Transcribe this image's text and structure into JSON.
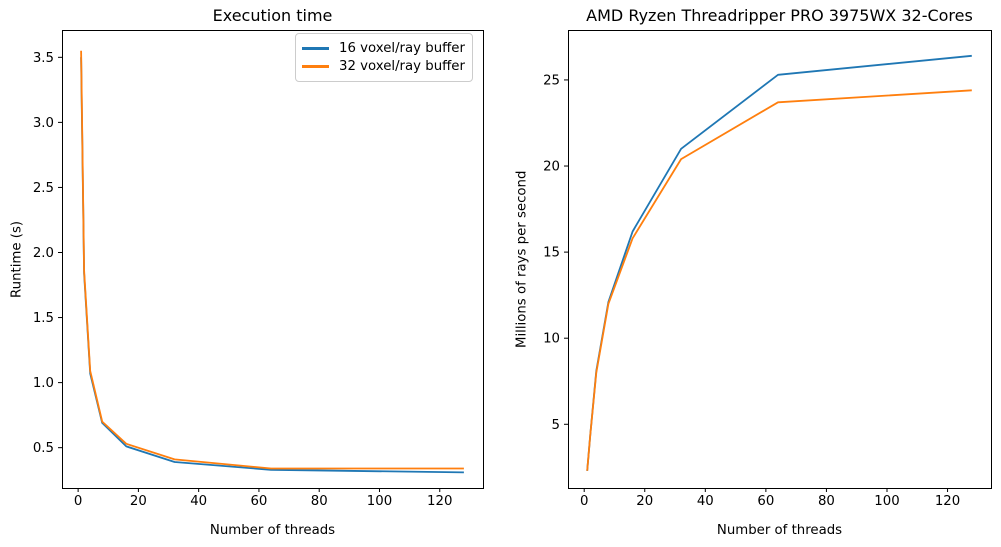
{
  "figure": {
    "background": "#ffffff",
    "text_color": "#000000",
    "axis_color": "#000000",
    "legend_border_color": "#cccccc"
  },
  "legend": {
    "position": "upper-right-of-left-chart",
    "items": [
      {
        "label": "16 voxel/ray buffer",
        "color": "#1f77b4"
      },
      {
        "label": "32 voxel/ray buffer",
        "color": "#ff7f0e"
      }
    ]
  },
  "chart_data": [
    {
      "type": "line",
      "title": "Execution time",
      "xlabel": "Number of threads",
      "ylabel": "Runtime (s)",
      "x": [
        1,
        2,
        4,
        8,
        16,
        32,
        64,
        128
      ],
      "series": [
        {
          "name": "16 voxel/ray buffer",
          "color": "#1f77b4",
          "values": [
            3.5,
            1.84,
            1.07,
            0.69,
            0.51,
            0.39,
            0.33,
            0.31
          ]
        },
        {
          "name": "32 voxel/ray buffer",
          "color": "#ff7f0e",
          "values": [
            3.55,
            1.86,
            1.09,
            0.7,
            0.53,
            0.41,
            0.34,
            0.34
          ]
        }
      ],
      "xticks": [
        0,
        20,
        40,
        60,
        80,
        100,
        120
      ],
      "yticks": [
        0.5,
        1.0,
        1.5,
        2.0,
        2.5,
        3.0,
        3.5
      ],
      "xlim": [
        -5.35,
        134.35
      ],
      "ylim": [
        0.19,
        3.71
      ],
      "grid": false,
      "legend_position": "upper right"
    },
    {
      "type": "line",
      "title": "AMD Ryzen Threadripper PRO 3975WX 32-Cores",
      "xlabel": "Number of threads",
      "ylabel": "Millions of rays per second",
      "x": [
        1,
        2,
        4,
        8,
        16,
        32,
        64,
        128
      ],
      "series": [
        {
          "name": "16 voxel/ray buffer",
          "color": "#1f77b4",
          "values": [
            2.3,
            4.4,
            8.1,
            12.1,
            16.2,
            21.0,
            25.3,
            26.4
          ]
        },
        {
          "name": "32 voxel/ray buffer",
          "color": "#ff7f0e",
          "values": [
            2.3,
            4.4,
            8.0,
            12.0,
            15.8,
            20.4,
            23.7,
            24.4
          ]
        }
      ],
      "xticks": [
        0,
        20,
        40,
        60,
        80,
        100,
        120
      ],
      "yticks": [
        5,
        10,
        15,
        20,
        25
      ],
      "xlim": [
        -5.35,
        134.35
      ],
      "ylim": [
        1.3,
        27.9
      ],
      "grid": false,
      "legend_position": "none"
    }
  ]
}
